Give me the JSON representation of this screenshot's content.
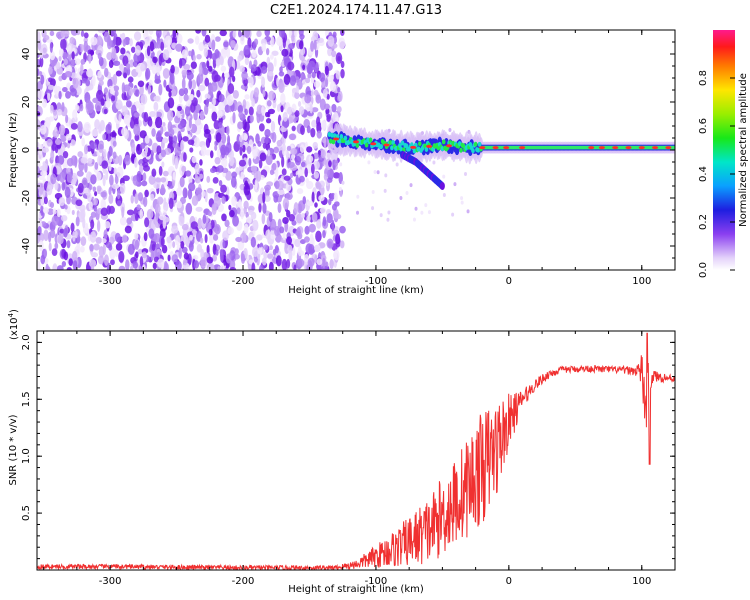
{
  "title": "C2E1.2024.174.11.47.G13",
  "colors": {
    "spectrogram_noise": "#7a28e6",
    "spectrogram_trace_core": "#ff2a2a",
    "snr_line": "#f03030",
    "axis": "#000000"
  },
  "colorbar": {
    "label": "Normalized spectral amplitude",
    "ticks": [
      "0.0",
      "0.2",
      "0.4",
      "0.6",
      "0.8"
    ],
    "range": [
      0,
      1
    ]
  },
  "chart_data": [
    {
      "type": "heatmap",
      "name": "spectrogram",
      "xlabel": "Height of straight line (km)",
      "ylabel": "Frequency (Hz)",
      "xlim": [
        -355,
        125
      ],
      "ylim": [
        -50,
        50
      ],
      "xticks": [
        "-300",
        "-200",
        "-100",
        "0",
        "100"
      ],
      "yticks": [
        "-40",
        "-20",
        "0",
        "20",
        "40"
      ],
      "noise_region_x": [
        -355,
        -125
      ],
      "signal_trace": {
        "x": [
          -135,
          -110,
          -90,
          -70,
          -50,
          -30,
          -10,
          10,
          40,
          70,
          100,
          125
        ],
        "frequency": [
          5,
          3,
          2,
          1,
          2,
          1,
          1,
          1,
          1,
          1,
          1,
          1
        ]
      },
      "secondary_branch": {
        "x": [
          -80,
          -70,
          -60,
          -50
        ],
        "frequency": [
          -2,
          -5,
          -10,
          -15
        ]
      }
    },
    {
      "type": "line",
      "name": "snr",
      "xlabel": "Height of straight line (km)",
      "ylabel": "SNR (10 * v/v)",
      "y_multiplier": "(x10",
      "y_multiplier_exp": "4",
      "y_multiplier_close": ")",
      "xlim": [
        -355,
        125
      ],
      "ylim": [
        0,
        2.1
      ],
      "xticks": [
        "-300",
        "-200",
        "-100",
        "0",
        "100"
      ],
      "yticks": [
        "0.5",
        "1.0",
        "1.5",
        "2.0"
      ],
      "x": [
        -355,
        -300,
        -200,
        -130,
        -115,
        -100,
        -80,
        -60,
        -40,
        -30,
        -20,
        -10,
        0,
        10,
        20,
        30,
        40,
        60,
        80,
        95,
        100,
        103,
        106,
        110,
        125
      ],
      "mean": [
        0.03,
        0.03,
        0.02,
        0.02,
        0.05,
        0.12,
        0.22,
        0.35,
        0.6,
        0.75,
        0.9,
        1.05,
        1.3,
        1.5,
        1.63,
        1.72,
        1.76,
        1.77,
        1.76,
        1.75,
        1.75,
        1.4,
        1.72,
        1.7,
        1.68
      ],
      "noise": [
        0.02,
        0.02,
        0.02,
        0.02,
        0.04,
        0.1,
        0.2,
        0.3,
        0.4,
        0.45,
        0.5,
        0.45,
        0.25,
        0.08,
        0.05,
        0.04,
        0.03,
        0.03,
        0.03,
        0.04,
        0.15,
        0.35,
        0.15,
        0.05,
        0.03
      ],
      "extremes": {
        "peak": [
          104,
          2.08
        ],
        "dip": [
          106,
          0.93
        ]
      }
    }
  ]
}
